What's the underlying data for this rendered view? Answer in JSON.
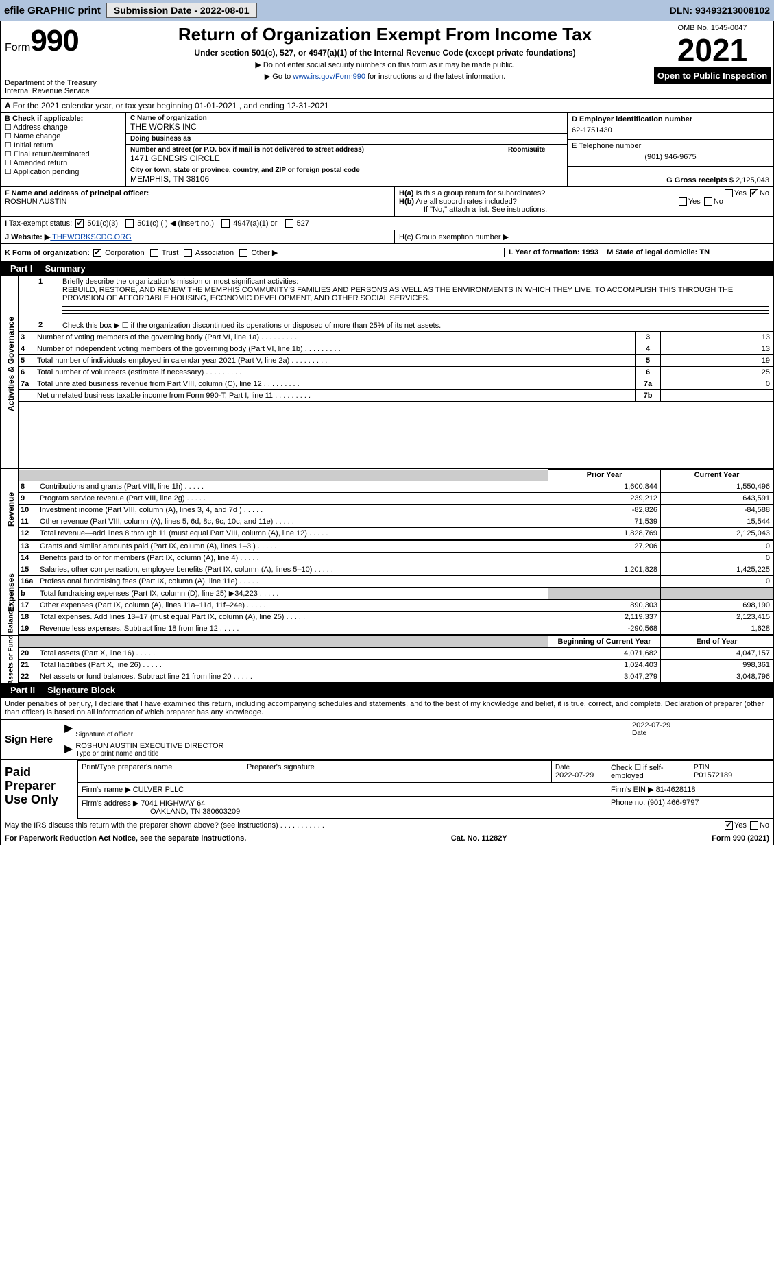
{
  "efile": {
    "label": "efile GRAPHIC print",
    "submission_label": "Submission Date - 2022-08-01",
    "dln_label": "DLN: 93493213008102"
  },
  "head": {
    "form": "Form",
    "num": "990",
    "title": "Return of Organization Exempt From Income Tax",
    "sub": "Under section 501(c), 527, or 4947(a)(1) of the Internal Revenue Code (except private foundations)",
    "note1": "▶ Do not enter social security numbers on this form as it may be made public.",
    "note2_pre": "▶ Go to ",
    "note2_link": "www.irs.gov/Form990",
    "note2_post": " for instructions and the latest information.",
    "dept": "Department of the Treasury\nInternal Revenue Service",
    "omb": "OMB No. 1545-0047",
    "year": "2021",
    "otp": "Open to Public Inspection"
  },
  "A": {
    "text": "For the 2021 calendar year, or tax year beginning 01-01-2021   , and ending 12-31-2021"
  },
  "B": {
    "header": "B Check if applicable:",
    "items": [
      "Address change",
      "Name change",
      "Initial return",
      "Final return/terminated",
      "Amended return",
      "Application pending"
    ]
  },
  "C": {
    "name_label": "C Name of organization",
    "name": "THE WORKS INC",
    "dba_label": "Doing business as",
    "dba": "",
    "street_label": "Number and street (or P.O. box if mail is not delivered to street address)",
    "room_label": "Room/suite",
    "street": "1471 GENESIS CIRCLE",
    "city_label": "City or town, state or province, country, and ZIP or foreign postal code",
    "city": "MEMPHIS, TN  38106"
  },
  "D": {
    "label": "D Employer identification number",
    "val": "62-1751430"
  },
  "E": {
    "label": "E Telephone number",
    "val": "(901) 946-9675"
  },
  "G": {
    "label": "G Gross receipts $",
    "val": "2,125,043"
  },
  "F": {
    "label": "F  Name and address of principal officer:",
    "val": "ROSHUN AUSTIN"
  },
  "H": {
    "a": "H(a)  Is this a group return for subordinates?",
    "b": "H(b)  Are all subordinates included?",
    "b_note": "If \"No,\" attach a list. See instructions.",
    "c": "H(c)  Group exemption number ▶"
  },
  "I": {
    "label": "I   Tax-exempt status:",
    "opts": [
      "501(c)(3)",
      "501(c) (  ) ◀ (insert no.)",
      "4947(a)(1) or",
      "527"
    ]
  },
  "J": {
    "label": "J   Website: ▶",
    "val": " THEWORKSCDC.ORG"
  },
  "K": {
    "label": "K Form of organization:",
    "opts": [
      "Corporation",
      "Trust",
      "Association",
      "Other ▶"
    ]
  },
  "L": {
    "label": "L Year of formation: 1993"
  },
  "M": {
    "label": "M State of legal domicile: TN"
  },
  "partI": {
    "label": "Part I",
    "title": "Summary"
  },
  "mission": {
    "q": "1  Briefly describe the organization's mission or most significant activities:",
    "text": "REBUILD, RESTORE, AND RENEW THE MEMPHIS COMMUNITY'S FAMILIES AND PERSONS AS WELL AS THE ENVIRONMENTS IN WHICH THEY LIVE. TO ACCOMPLISH THIS THROUGH THE PROVISION OF AFFORDABLE HOUSING, ECONOMIC DEVELOPMENT, AND OTHER SOCIAL SERVICES."
  },
  "gov": {
    "l2": "Check this box ▶ ☐  if the organization discontinued its operations or disposed of more than 25% of its net assets.",
    "rows": [
      {
        "n": "3",
        "d": "Number of voting members of the governing body (Part VI, line 1a)",
        "b": "3",
        "v": "13"
      },
      {
        "n": "4",
        "d": "Number of independent voting members of the governing body (Part VI, line 1b)",
        "b": "4",
        "v": "13"
      },
      {
        "n": "5",
        "d": "Total number of individuals employed in calendar year 2021 (Part V, line 2a)",
        "b": "5",
        "v": "19"
      },
      {
        "n": "6",
        "d": "Total number of volunteers (estimate if necessary)",
        "b": "6",
        "v": "25"
      },
      {
        "n": "7a",
        "d": "Total unrelated business revenue from Part VIII, column (C), line 12",
        "b": "7a",
        "v": "0"
      },
      {
        "n": "",
        "d": "Net unrelated business taxable income from Form 990-T, Part I, line 11",
        "b": "7b",
        "v": ""
      }
    ],
    "side": "Activities & Governance"
  },
  "rev": {
    "side": "Revenue",
    "hdr1": "Prior Year",
    "hdr2": "Current Year",
    "rows": [
      {
        "n": "8",
        "d": "Contributions and grants (Part VIII, line 1h)",
        "p": "1,600,844",
        "c": "1,550,496"
      },
      {
        "n": "9",
        "d": "Program service revenue (Part VIII, line 2g)",
        "p": "239,212",
        "c": "643,591"
      },
      {
        "n": "10",
        "d": "Investment income (Part VIII, column (A), lines 3, 4, and 7d )",
        "p": "-82,826",
        "c": "-84,588"
      },
      {
        "n": "11",
        "d": "Other revenue (Part VIII, column (A), lines 5, 6d, 8c, 9c, 10c, and 11e)",
        "p": "71,539",
        "c": "15,544"
      },
      {
        "n": "12",
        "d": "Total revenue—add lines 8 through 11 (must equal Part VIII, column (A), line 12)",
        "p": "1,828,769",
        "c": "2,125,043"
      }
    ]
  },
  "exp": {
    "side": "Expenses",
    "rows": [
      {
        "n": "13",
        "d": "Grants and similar amounts paid (Part IX, column (A), lines 1–3 )",
        "p": "27,206",
        "c": "0"
      },
      {
        "n": "14",
        "d": "Benefits paid to or for members (Part IX, column (A), line 4)",
        "p": "",
        "c": "0"
      },
      {
        "n": "15",
        "d": "Salaries, other compensation, employee benefits (Part IX, column (A), lines 5–10)",
        "p": "1,201,828",
        "c": "1,425,225"
      },
      {
        "n": "16a",
        "d": "Professional fundraising fees (Part IX, column (A), line 11e)",
        "p": "",
        "c": "0"
      },
      {
        "n": "b",
        "d": "Total fundraising expenses (Part IX, column (D), line 25) ▶34,223",
        "p": "GRAY",
        "c": "GRAY"
      },
      {
        "n": "17",
        "d": "Other expenses (Part IX, column (A), lines 11a–11d, 11f–24e)",
        "p": "890,303",
        "c": "698,190"
      },
      {
        "n": "18",
        "d": "Total expenses. Add lines 13–17 (must equal Part IX, column (A), line 25)",
        "p": "2,119,337",
        "c": "2,123,415"
      },
      {
        "n": "19",
        "d": "Revenue less expenses. Subtract line 18 from line 12",
        "p": "-290,568",
        "c": "1,628"
      }
    ]
  },
  "net": {
    "side": "Net Assets or Fund Balances",
    "hdr1": "Beginning of Current Year",
    "hdr2": "End of Year",
    "rows": [
      {
        "n": "20",
        "d": "Total assets (Part X, line 16)",
        "p": "4,071,682",
        "c": "4,047,157"
      },
      {
        "n": "21",
        "d": "Total liabilities (Part X, line 26)",
        "p": "1,024,403",
        "c": "998,361"
      },
      {
        "n": "22",
        "d": "Net assets or fund balances. Subtract line 21 from line 20",
        "p": "3,047,279",
        "c": "3,048,796"
      }
    ]
  },
  "partII": {
    "label": "Part II",
    "title": "Signature Block"
  },
  "penalties": "Under penalties of perjury, I declare that I have examined this return, including accompanying schedules and statements, and to the best of my knowledge and belief, it is true, correct, and complete. Declaration of preparer (other than officer) is based on all information of which preparer has any knowledge.",
  "sign": {
    "l": "Sign Here",
    "sig_label": "Signature of officer",
    "date": "2022-07-29",
    "date_label": "Date",
    "name": "ROSHUN AUSTIN  EXECUTIVE DIRECTOR",
    "name_label": "Type or print name and title"
  },
  "paid": {
    "l": "Paid Preparer Use Only",
    "h": [
      "Print/Type preparer's name",
      "Preparer's signature",
      "Date",
      "",
      "PTIN"
    ],
    "date": "2022-07-29",
    "check": "Check ☐ if self-employed",
    "ptin": "P01572189",
    "firm_l": "Firm's name    ▶",
    "firm": "CULVER PLLC",
    "ein_l": "Firm's EIN ▶",
    "ein": "81-4628118",
    "addr_l": "Firm's address ▶",
    "addr1": "7041 HIGHWAY 64",
    "addr2": "OAKLAND, TN  380603209",
    "phone_l": "Phone no.",
    "phone": "(901) 466-9797"
  },
  "disc": "May the IRS discuss this return with the preparer shown above? (see instructions)",
  "foot": {
    "l": "For Paperwork Reduction Act Notice, see the separate instructions.",
    "c": "Cat. No. 11282Y",
    "r": "Form 990 (2021)"
  }
}
